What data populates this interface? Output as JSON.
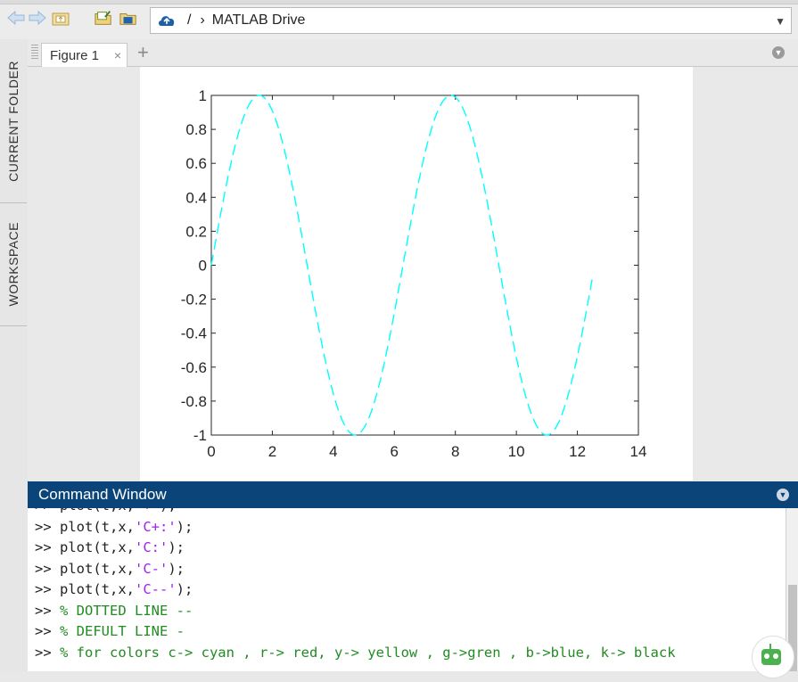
{
  "toolbar": {
    "icons": [
      "back-arrow-icon",
      "forward-arrow-icon",
      "up-folder-icon",
      "open-folder-icon",
      "browse-folder-icon"
    ],
    "address": {
      "cloud_icon": "cloud-icon",
      "root": "/",
      "separator": "›",
      "path": "MATLAB Drive"
    }
  },
  "sidebar": {
    "tabs": [
      {
        "label": "CURRENT FOLDER"
      },
      {
        "label": "WORKSPACE"
      }
    ]
  },
  "figure": {
    "tab_label": "Figure 1",
    "close": "×",
    "add": "+",
    "chart_data": {
      "type": "line",
      "title": "",
      "xlabel": "",
      "ylabel": "",
      "xlim": [
        0,
        14
      ],
      "ylim": [
        -1,
        1
      ],
      "xticks": [
        "0",
        "2",
        "4",
        "6",
        "8",
        "10",
        "12",
        "14"
      ],
      "yticks": [
        "1",
        "0.8",
        "0.6",
        "0.4",
        "0.2",
        "0",
        "-0.2",
        "-0.4",
        "-0.6",
        "-0.8",
        "-1"
      ],
      "series": [
        {
          "function": "sin(t)",
          "x_range": [
            0,
            12.5
          ],
          "color": "#00ffff",
          "linestyle": "dashed"
        }
      ],
      "grid": false
    }
  },
  "command_window": {
    "title": "Command Window",
    "lines": [
      {
        "prompt": ">> ",
        "pre": "plot(t,x,",
        "str": "'+'",
        "post": ");",
        "comment": ""
      },
      {
        "prompt": ">> ",
        "pre": "plot(t,x,",
        "str": "'C+:'",
        "post": ");",
        "comment": ""
      },
      {
        "prompt": ">> ",
        "pre": "plot(t,x,",
        "str": "'C:'",
        "post": ");",
        "comment": ""
      },
      {
        "prompt": ">> ",
        "pre": "plot(t,x,",
        "str": "'C-'",
        "post": ");",
        "comment": ""
      },
      {
        "prompt": ">> ",
        "pre": "plot(t,x,",
        "str": "'C--'",
        "post": ");",
        "comment": ""
      },
      {
        "prompt": ">> ",
        "pre": "",
        "str": "",
        "post": "",
        "comment": "% DOTTED LINE --"
      },
      {
        "prompt": ">> ",
        "pre": "",
        "str": "",
        "post": "",
        "comment": "% DEFULT LINE -"
      },
      {
        "prompt": ">> ",
        "pre": "",
        "str": "",
        "post": "",
        "comment": "% for colors c-> cyan , r-> red, y-> yellow , g->gren , b->blue, k-> black"
      }
    ]
  },
  "colors": {
    "accent": "#0a4478",
    "line": "#00ffff"
  }
}
